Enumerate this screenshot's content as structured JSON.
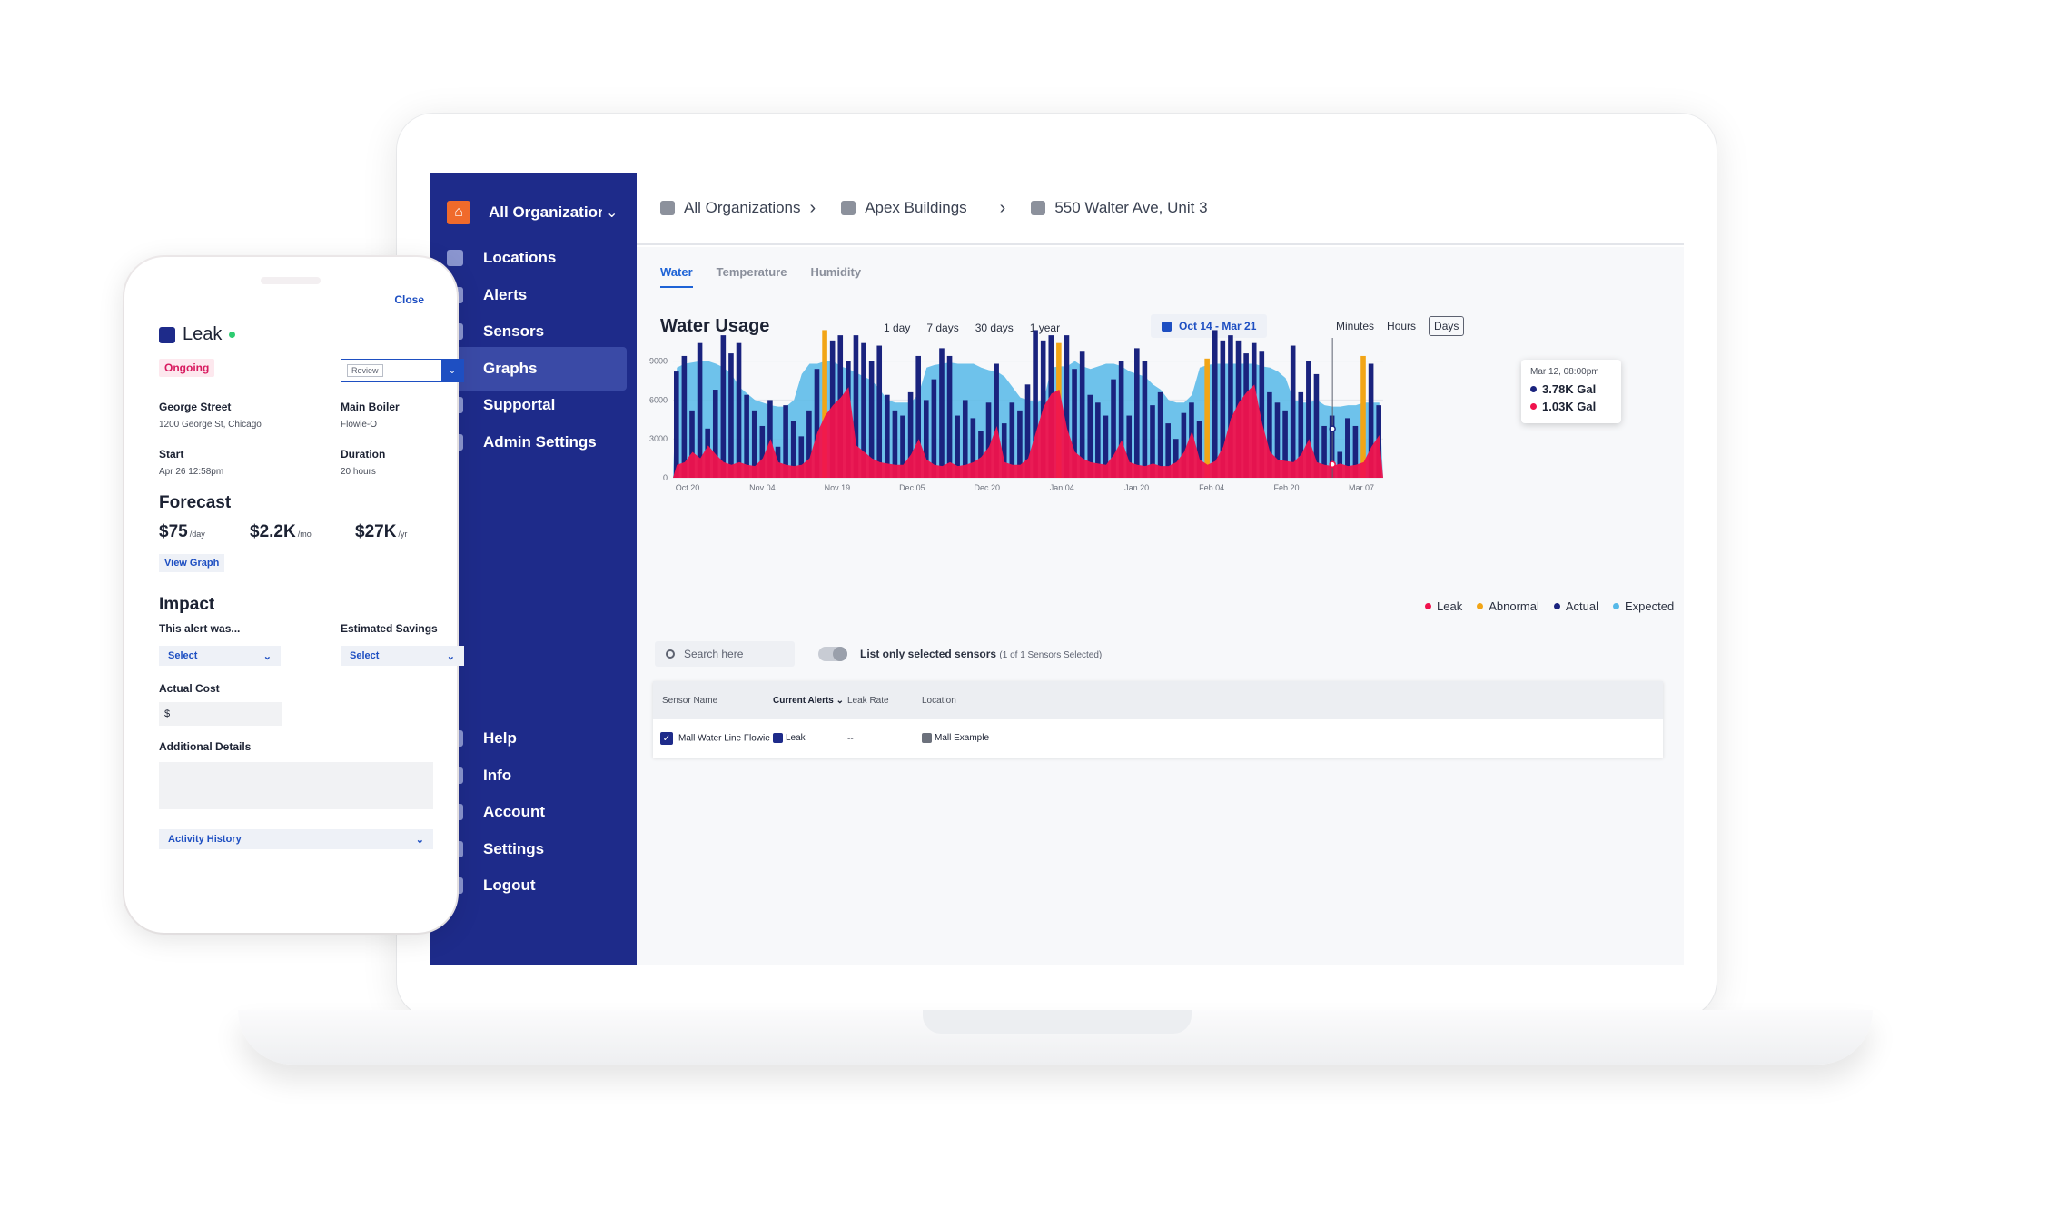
{
  "sidebar": {
    "org_label": "All Organizations",
    "items": [
      {
        "label": "Locations",
        "icon": "building-icon"
      },
      {
        "label": "Alerts",
        "icon": "alert-icon"
      },
      {
        "label": "Sensors",
        "icon": "sensor-icon"
      },
      {
        "label": "Graphs",
        "icon": "graph-icon",
        "active": true
      },
      {
        "label": "Supportal",
        "icon": "heart-icon"
      },
      {
        "label": "Admin Settings",
        "icon": "admin-gear-icon"
      }
    ],
    "bottom_items": [
      {
        "label": "Help",
        "icon": "help-icon"
      },
      {
        "label": "Info",
        "icon": "info-icon"
      },
      {
        "label": "Account",
        "icon": "account-icon"
      },
      {
        "label": "Settings",
        "icon": "gear-icon"
      },
      {
        "label": "Logout",
        "icon": "logout-icon"
      }
    ]
  },
  "breadcrumb": [
    "All Organizations",
    "Apex Buildings",
    "550 Walter Ave, Unit 3"
  ],
  "tabs": [
    "Water",
    "Temperature",
    "Humidity"
  ],
  "chart": {
    "title": "Water Usage",
    "ranges": [
      "1 day",
      "7 days",
      "30 days",
      "1 year"
    ],
    "date_range": "Oct 14 - Mar 21",
    "granularity": [
      "Minutes",
      "Hours",
      "Days"
    ],
    "active_granularity": "Days",
    "tooltip": {
      "time": "Mar 12, 08:00pm",
      "actual": "3.78K Gal",
      "leak": "1.03K Gal"
    },
    "legend": [
      "Leak",
      "Abnormal",
      "Actual",
      "Expected"
    ],
    "colors": {
      "leak": "#f0134d",
      "abnormal": "#f2a516",
      "actual": "#1a237e",
      "expected": "#56b9e8"
    }
  },
  "chart_data": {
    "type": "bar",
    "x_ticks": [
      "Oct 20",
      "Nov 04",
      "Nov 19",
      "Dec 05",
      "Dec 20",
      "Jan 04",
      "Jan 20",
      "Feb 04",
      "Feb 20",
      "Mar 07"
    ],
    "y_ticks": [
      "0",
      "3000",
      "6000",
      "9000"
    ],
    "ylim": [
      0,
      11500
    ],
    "series": [
      {
        "name": "Actual",
        "values": [
          8200,
          9400,
          5200,
          10400,
          3800,
          6800,
          11000,
          9600,
          10400,
          6400,
          5200,
          4000,
          6000,
          2400,
          5600,
          4400,
          3200,
          5200,
          8400,
          11400,
          10600,
          11000,
          9000,
          11000,
          10400,
          9000,
          10200,
          6400,
          5200,
          4800,
          6600,
          9400,
          6000,
          7600,
          10000,
          9400,
          4800,
          6000,
          4600,
          3600,
          5800,
          8800,
          4200,
          5800,
          5200,
          7200,
          11400,
          10600,
          11000,
          10400,
          11000,
          8400,
          9800,
          6400,
          5800,
          4800,
          7600,
          9000,
          4800,
          10000,
          9000,
          5600,
          6600,
          4200,
          3000,
          5000,
          5800,
          4400,
          9200,
          11400,
          10600,
          11000,
          10600,
          9600,
          10400,
          9800,
          6600,
          5800,
          5200,
          10200,
          6600,
          9000,
          8000,
          4000,
          4800,
          2000,
          4600,
          4000,
          9400,
          8800,
          5600
        ]
      },
      {
        "name": "Expected",
        "values": [
          8500,
          8800,
          8900,
          9000,
          9000,
          8800,
          8500,
          8000,
          7000,
          6500,
          6000,
          5800,
          5600,
          5500,
          5500,
          6000,
          8000,
          8800,
          8800,
          9000,
          9000,
          8600,
          8400,
          8100,
          7800,
          7500,
          6800,
          6000,
          5800,
          5800,
          5800,
          6500,
          8500,
          8700,
          8800,
          8900,
          8800,
          8800,
          8800,
          8500,
          8300,
          8200,
          7800,
          7000,
          6200,
          6000,
          5800,
          6000,
          8500,
          8600,
          8600,
          9000,
          8600,
          8400,
          8600,
          8800,
          8800,
          8600,
          8200,
          8000,
          7800,
          7200,
          6800,
          6000,
          5800,
          5800,
          6400,
          8500,
          8700,
          8800,
          8800,
          8800,
          8800,
          8800,
          8800,
          8600,
          8500,
          8200,
          7700,
          6000,
          5800,
          5800,
          6000,
          5600,
          5500,
          5500,
          5600,
          5600,
          5800,
          5800,
          5800
        ]
      },
      {
        "name": "Leak",
        "values": [
          1000,
          1200,
          2000,
          1500,
          2500,
          1800,
          1200,
          1000,
          1200,
          1000,
          900,
          1500,
          3000,
          1200,
          1000,
          900,
          1000,
          1500,
          3500,
          4800,
          5600,
          6200,
          7000,
          2500,
          2000,
          1500,
          1200,
          1100,
          1000,
          1000,
          1800,
          3000,
          1400,
          1000,
          900,
          1200,
          900,
          1000,
          1200,
          1600,
          2400,
          4000,
          1200,
          1000,
          1000,
          1500,
          3500,
          5500,
          6500,
          6800,
          3800,
          2000,
          1500,
          1200,
          1100,
          1000,
          1800,
          2900,
          1200,
          1000,
          900,
          1100,
          900,
          900,
          1200,
          2000,
          3600,
          1400,
          1000,
          1300,
          2400,
          4600,
          5800,
          6600,
          7200,
          4200,
          2000,
          1400,
          1300,
          1200,
          1800,
          3000,
          1200,
          1000,
          900,
          1100,
          900,
          1000,
          1200,
          2400,
          3300
        ]
      }
    ],
    "abnormal_indices": [
      19,
      49,
      68,
      88
    ]
  },
  "toolbar": {
    "search_placeholder": "Search here",
    "toggle_label": "List only selected sensors",
    "toggle_sub": "(1 of 1 Sensors Selected)"
  },
  "table": {
    "headers": [
      "Sensor Name",
      "Current Alerts",
      "Leak Rate",
      "Location"
    ],
    "rows": [
      {
        "name": "Mall Water Line Flowie",
        "alert": "Leak",
        "rate": "--",
        "location": "Mall Example"
      }
    ]
  },
  "phone": {
    "close": "Close",
    "title": "Leak",
    "status": "Ongoing",
    "review": "Review",
    "location_label": "George Street",
    "location_value": "1200 George St, Chicago",
    "device_label": "Main Boiler",
    "device_value": "Flowie-O",
    "start_label": "Start",
    "start_value": "Apr 26 12:58pm",
    "duration_label": "Duration",
    "duration_value": "20 hours",
    "forecast_title": "Forecast",
    "forecast": [
      {
        "value": "$75",
        "unit": "/day"
      },
      {
        "value": "$2.2K",
        "unit": "/mo"
      },
      {
        "value": "$27K",
        "unit": "/yr"
      }
    ],
    "view_graph": "View Graph",
    "impact_title": "Impact",
    "alert_was_label": "This alert was...",
    "savings_label": "Estimated Savings",
    "select_label": "Select",
    "actual_cost_label": "Actual Cost",
    "actual_cost_value": "$",
    "details_label": "Additional Details",
    "activity_history": "Activity History"
  }
}
